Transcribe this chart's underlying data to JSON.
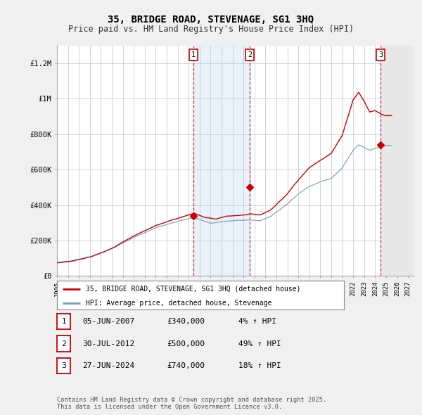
{
  "title": "35, BRIDGE ROAD, STEVENAGE, SG1 3HQ",
  "subtitle": "Price paid vs. HM Land Registry's House Price Index (HPI)",
  "red_label": "35, BRIDGE ROAD, STEVENAGE, SG1 3HQ (detached house)",
  "blue_label": "HPI: Average price, detached house, Stevenage",
  "footer": "Contains HM Land Registry data © Crown copyright and database right 2025.\nThis data is licensed under the Open Government Licence v3.0.",
  "transactions": [
    {
      "num": 1,
      "date": "05-JUN-2007",
      "price": 340000,
      "hpi_pct": "4%",
      "direction": "↑"
    },
    {
      "num": 2,
      "date": "30-JUL-2012",
      "price": 500000,
      "hpi_pct": "49%",
      "direction": "↑"
    },
    {
      "num": 3,
      "date": "27-JUN-2024",
      "price": 740000,
      "hpi_pct": "18%",
      "direction": "↑"
    }
  ],
  "ylim": [
    0,
    1300000
  ],
  "yticks": [
    0,
    200000,
    400000,
    600000,
    800000,
    1000000,
    1200000
  ],
  "ytick_labels": [
    "£0",
    "£200K",
    "£400K",
    "£600K",
    "£800K",
    "£1M",
    "£1.2M"
  ],
  "xlim_start": 1995.0,
  "xlim_end": 2027.5,
  "background_color": "#f0f0f0",
  "plot_bg_color": "#ffffff",
  "red_color": "#cc0000",
  "blue_color": "#7799bb",
  "grid_color": "#cccccc",
  "t1_x": 2007.425,
  "t2_x": 2012.578,
  "t3_x": 2024.493,
  "transaction_prices": [
    340000,
    500000,
    740000
  ]
}
